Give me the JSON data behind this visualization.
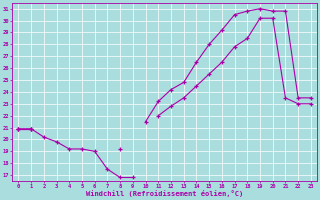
{
  "bg_color": "#aadddd",
  "line_color": "#aa00aa",
  "grid_color": "#ffffff",
  "xlabel": "Windchill (Refroidissement éolien,°C)",
  "yticks": [
    17,
    18,
    19,
    20,
    21,
    22,
    23,
    24,
    25,
    26,
    27,
    28,
    29,
    30,
    31
  ],
  "xticks": [
    0,
    1,
    2,
    3,
    4,
    5,
    6,
    7,
    8,
    9,
    10,
    11,
    12,
    13,
    14,
    15,
    16,
    17,
    18,
    19,
    20,
    21,
    22,
    23
  ],
  "xlim": [
    -0.5,
    23.5
  ],
  "ylim": [
    16.5,
    31.5
  ],
  "line1_y": [
    20.9,
    20.9,
    20.2,
    19.8,
    19.2,
    19.2,
    19.0,
    17.5,
    16.8,
    16.8,
    null,
    null,
    null,
    null,
    null,
    null,
    null,
    null,
    null,
    null,
    null,
    null,
    null,
    null
  ],
  "line2_y": [
    20.9,
    20.9,
    null,
    null,
    null,
    null,
    null,
    null,
    null,
    null,
    21.5,
    23.2,
    24.2,
    24.8,
    26.5,
    28.0,
    29.2,
    30.5,
    30.8,
    31.0,
    30.8,
    30.8,
    23.5,
    23.5
  ],
  "line3_y": [
    20.9,
    20.9,
    null,
    null,
    null,
    null,
    null,
    null,
    19.2,
    null,
    null,
    22.0,
    22.8,
    23.5,
    24.5,
    25.5,
    26.5,
    27.8,
    28.5,
    30.2,
    30.2,
    23.5,
    23.0,
    23.0
  ]
}
